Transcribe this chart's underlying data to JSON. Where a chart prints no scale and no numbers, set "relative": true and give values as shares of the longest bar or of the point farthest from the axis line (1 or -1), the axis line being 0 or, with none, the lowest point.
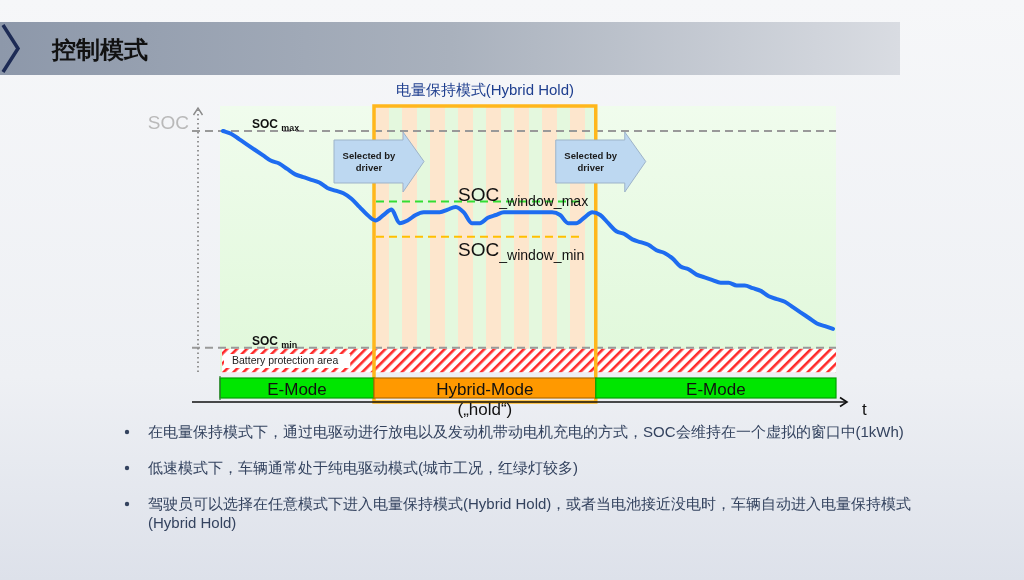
{
  "chart_data": [
    {
      "type": "line",
      "title": "控制模式",
      "ylabel": "SOC",
      "xlabel": "t",
      "relative": true,
      "categories": [
        null,
        null,
        null,
        null,
        null,
        null,
        null,
        null,
        null,
        null,
        null,
        null,
        null,
        null,
        null,
        null,
        null,
        null,
        null,
        null,
        null,
        null,
        null,
        null,
        null,
        null,
        null,
        null,
        null,
        null,
        null,
        null,
        null,
        null,
        null,
        null,
        null,
        null,
        null,
        null,
        null,
        null,
        null,
        null,
        null,
        null,
        null,
        null,
        null,
        null,
        null,
        null,
        null,
        null,
        null,
        null,
        null,
        null,
        null,
        null,
        null,
        null,
        null,
        null,
        null,
        null,
        null,
        null,
        null,
        null,
        null,
        null,
        null,
        null,
        null,
        null,
        null
      ],
      "series": [
        {
          "color": "#1e6cf0",
          "values": [
            1.0,
            0.99,
            0.97,
            0.95,
            0.93,
            0.91,
            0.89,
            0.88,
            0.86,
            0.84,
            0.83,
            0.82,
            0.81,
            0.79,
            0.78,
            0.77,
            0.75,
            0.72,
            0.69,
            0.67,
            0.69,
            0.71,
            0.66,
            0.67,
            0.69,
            0.7,
            0.7,
            0.7,
            0.71,
            0.72,
            0.7,
            0.66,
            0.66,
            0.68,
            0.69,
            0.7,
            0.7,
            0.7,
            0.7,
            0.7,
            0.7,
            0.7,
            0.69,
            0.66,
            0.66,
            0.68,
            0.7,
            0.69,
            0.66,
            0.63,
            0.62,
            0.6,
            0.59,
            0.58,
            0.56,
            0.55,
            0.53,
            0.5,
            0.49,
            0.47,
            0.46,
            0.45,
            0.44,
            0.44,
            0.43,
            0.43,
            0.42,
            0.41,
            0.39,
            0.38,
            0.37,
            0.35,
            0.33,
            0.31,
            0.29,
            0.28,
            0.27
          ]
        }
      ],
      "ref_lines": [
        {
          "axis": "y",
          "value": 1.0,
          "label": "SOC $_{max}$",
          "color": "#999999",
          "line_style": "dashed"
        },
        {
          "axis": "y",
          "value": 0.2,
          "label": "SOC $_{min}$",
          "color": "#999999",
          "line_style": "dashed"
        },
        {
          "axis": "y",
          "value": 0.74,
          "label": "SOC$_{_window_max}$",
          "color": "#33dd33",
          "line_style": "dashed"
        },
        {
          "axis": "y",
          "value": 0.61,
          "label": "SOC$_{_window_min}$",
          "color": "#ffc000",
          "line_style": "dashed"
        }
      ],
      "bands": [
        {
          "axis": "y",
          "from": 0.11,
          "to": 0.2,
          "label": "Battery protection area",
          "color": "#ff2a2a"
        }
      ],
      "annotations": [
        "电量保持模式(Hybrid Hold)",
        "Selected by driver",
        "Selected by driver",
        "在电量保持模式下，通过电驱动进行放电以及发动机带动电机充电的方式，SOC会维持在一个虚拟的窗口中(1kWh)",
        "低速模式下，车辆通常处于纯电驱动模式(城市工况，红绿灯较多)",
        "驾驶员可以选择在任意模式下进入电量保持模式(Hybrid Hold)，或者当电池接近没电时，车辆自动进入电量保持模式(Hybrid Hold)"
      ]
    },
    {
      "type": "bar",
      "orientation": "horizontal",
      "stacked": true,
      "relative": true,
      "categories": [
        null
      ],
      "series": [
        {
          "name": "E-Mode",
          "color": "#00e600",
          "values": [
            0.25
          ]
        },
        {
          "name": "Hybrid-Mode\n(„hold“)",
          "color": "#ff9900",
          "values": [
            0.36
          ]
        },
        {
          "name": "E-Mode",
          "color": "#00e600",
          "values": [
            0.39
          ]
        }
      ]
    }
  ]
}
